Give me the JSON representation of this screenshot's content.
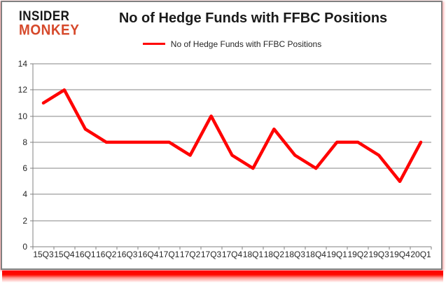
{
  "logo": {
    "line1": "INSIDER",
    "line2": "MONKEY"
  },
  "header": {
    "title": "No of Hedge Funds with FFBC Positions"
  },
  "legend": {
    "label": "No of Hedge Funds with FFBC Positions",
    "swatch_color": "#ff0000"
  },
  "colors": {
    "series_line": "#ff0000",
    "gridline": "#848484",
    "axis": "#808080",
    "tick_label": "#262626",
    "frame_border": "#808080",
    "frame_bottom_glow": "#ff0000",
    "logo_black": "#161616",
    "logo_red": "#d6492b"
  },
  "chart_data": {
    "type": "line",
    "title": "No of Hedge Funds with FFBC Positions",
    "xlabel": "",
    "ylabel": "",
    "categories": [
      "15Q3",
      "15Q4",
      "16Q1",
      "16Q2",
      "16Q3",
      "16Q4",
      "17Q1",
      "17Q2",
      "17Q3",
      "17Q4",
      "18Q1",
      "18Q2",
      "18Q3",
      "18Q4",
      "19Q1",
      "19Q2",
      "19Q3",
      "19Q4",
      "20Q1"
    ],
    "series": [
      {
        "name": "No of Hedge Funds with FFBC Positions",
        "color": "#ff0000",
        "values": [
          11,
          12,
          9,
          8,
          8,
          8,
          8,
          7,
          10,
          7,
          6,
          9,
          7,
          6,
          8,
          8,
          7,
          5,
          8
        ]
      }
    ],
    "ylim": [
      0,
      14
    ],
    "yticks": [
      0,
      2,
      4,
      6,
      8,
      10,
      12,
      14
    ],
    "grid": true,
    "legend_position": "top"
  }
}
